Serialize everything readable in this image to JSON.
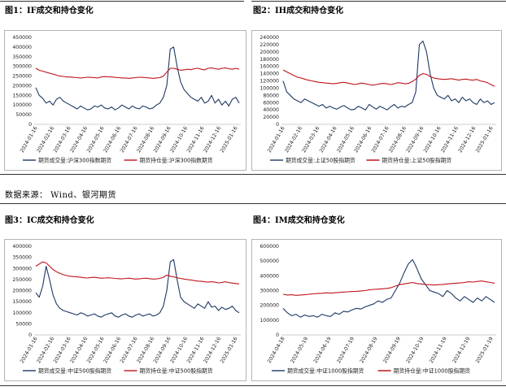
{
  "source_note": "数据来源：  Wind、银河期货",
  "colors": {
    "volume": "#1f3864",
    "oi": "#c0141b",
    "rule": "#333333",
    "frame": "#b5b5b5"
  },
  "chart_data": [
    {
      "id": "if",
      "type": "line",
      "title": "图1：IF成交和持仓变化",
      "yticks": [
        "450000",
        "400000",
        "350000",
        "300000",
        "250000",
        "200000",
        "150000",
        "100000",
        "50000",
        "0"
      ],
      "ylim": [
        0,
        450000
      ],
      "xticks": [
        "2024-01-16",
        "2024-02-16",
        "2024-03-16",
        "2024-04-16",
        "2024-05-16",
        "2024-06-16",
        "2024-07-16",
        "2024-08-16",
        "2024-09-16",
        "2024-10-16",
        "2024-11-16",
        "2024-12-16",
        "2025-01-16"
      ],
      "series": [
        {
          "name": "期货成交量:沪深300指数期货",
          "key": "volume",
          "values": [
            190000,
            150000,
            135000,
            110000,
            120000,
            100000,
            130000,
            140000,
            120000,
            110000,
            100000,
            90000,
            80000,
            95000,
            85000,
            75000,
            80000,
            95000,
            90000,
            100000,
            85000,
            80000,
            90000,
            75000,
            85000,
            100000,
            90000,
            80000,
            95000,
            85000,
            80000,
            95000,
            90000,
            80000,
            85000,
            100000,
            110000,
            140000,
            200000,
            390000,
            400000,
            300000,
            220000,
            180000,
            160000,
            140000,
            130000,
            120000,
            140000,
            110000,
            120000,
            150000,
            110000,
            130000,
            100000,
            120000,
            95000,
            130000,
            140000,
            110000
          ]
        },
        {
          "name": "期货持仓量:沪深300指数期货",
          "key": "oi",
          "values": [
            290000,
            280000,
            275000,
            270000,
            265000,
            260000,
            255000,
            250000,
            248000,
            245000,
            245000,
            243000,
            242000,
            240000,
            242000,
            244000,
            243000,
            242000,
            240000,
            245000,
            247000,
            246000,
            245000,
            243000,
            242000,
            240000,
            240000,
            238000,
            240000,
            242000,
            244000,
            243000,
            242000,
            240000,
            238000,
            240000,
            242000,
            250000,
            270000,
            290000,
            290000,
            285000,
            280000,
            282000,
            285000,
            283000,
            288000,
            290000,
            285000,
            282000,
            290000,
            292000,
            288000,
            285000,
            290000,
            292000,
            288000,
            285000,
            290000,
            285000
          ]
        }
      ]
    },
    {
      "id": "ih",
      "type": "line",
      "title": "图2：IH成交和持仓变化",
      "yticks": [
        "240000",
        "220000",
        "200000",
        "180000",
        "160000",
        "140000",
        "120000",
        "100000",
        "80000",
        "60000",
        "40000",
        "20000",
        "0"
      ],
      "ylim": [
        0,
        240000
      ],
      "xticks": [
        "2024-01-16",
        "2024-02-16",
        "2024-03-16",
        "2024-04-16",
        "2024-05-16",
        "2024-06-16",
        "2024-07-16",
        "2024-08-16",
        "2024-09-16",
        "2024-10-16",
        "2024-11-16",
        "2024-12-16",
        "2025-01-16"
      ],
      "series": [
        {
          "name": "期货成交量:上证50股指期货",
          "key": "volume",
          "values": [
            120000,
            90000,
            80000,
            70000,
            65000,
            60000,
            70000,
            65000,
            60000,
            55000,
            50000,
            55000,
            45000,
            50000,
            45000,
            42000,
            48000,
            52000,
            45000,
            40000,
            42000,
            50000,
            45000,
            40000,
            55000,
            48000,
            42000,
            50000,
            45000,
            40000,
            48000,
            55000,
            45000,
            50000,
            48000,
            55000,
            60000,
            90000,
            220000,
            230000,
            200000,
            140000,
            100000,
            80000,
            75000,
            70000,
            80000,
            65000,
            70000,
            60000,
            75000,
            65000,
            70000,
            60000,
            55000,
            70000,
            60000,
            65000,
            55000,
            60000
          ]
        },
        {
          "name": "期货持仓量:上证50股指期货",
          "key": "oi",
          "values": [
            150000,
            145000,
            140000,
            135000,
            130000,
            128000,
            125000,
            122000,
            120000,
            118000,
            116000,
            115000,
            114000,
            113000,
            112000,
            113000,
            115000,
            116000,
            114000,
            112000,
            110000,
            112000,
            114000,
            112000,
            110000,
            108000,
            110000,
            112000,
            113000,
            112000,
            110000,
            112000,
            115000,
            114000,
            112000,
            113000,
            118000,
            125000,
            135000,
            140000,
            138000,
            132000,
            128000,
            126000,
            125000,
            124000,
            125000,
            126000,
            124000,
            122000,
            124000,
            125000,
            123000,
            122000,
            124000,
            120000,
            118000,
            115000,
            110000,
            105000
          ]
        }
      ]
    },
    {
      "id": "ic",
      "type": "line",
      "title": "图3：IC成交和持仓变化",
      "yticks": [
        "400000",
        "350000",
        "300000",
        "250000",
        "200000",
        "150000",
        "100000",
        "50000",
        "0"
      ],
      "ylim": [
        0,
        400000
      ],
      "xticks": [
        "2024-01-16",
        "2024-02-16",
        "2024-03-16",
        "2024-04-16",
        "2024-05-16",
        "2024-06-16",
        "2024-07-16",
        "2024-08-16",
        "2024-09-16",
        "2024-10-16",
        "2024-11-16",
        "2024-12-16",
        "2025-01-16"
      ],
      "series": [
        {
          "name": "期货成交量:中证500股指期货",
          "key": "volume",
          "values": [
            190000,
            170000,
            220000,
            310000,
            250000,
            180000,
            140000,
            120000,
            110000,
            105000,
            100000,
            95000,
            90000,
            100000,
            95000,
            85000,
            90000,
            95000,
            85000,
            80000,
            90000,
            95000,
            100000,
            85000,
            80000,
            90000,
            95000,
            85000,
            80000,
            90000,
            95000,
            85000,
            90000,
            95000,
            85000,
            90000,
            100000,
            130000,
            200000,
            330000,
            340000,
            250000,
            170000,
            150000,
            140000,
            130000,
            120000,
            140000,
            130000,
            120000,
            150000,
            125000,
            130000,
            110000,
            125000,
            115000,
            120000,
            130000,
            110000,
            100000
          ]
        },
        {
          "name": "期货持仓量:中证500股指期货",
          "key": "oi",
          "values": [
            310000,
            320000,
            330000,
            325000,
            310000,
            295000,
            285000,
            278000,
            272000,
            268000,
            265000,
            263000,
            262000,
            260000,
            258000,
            257000,
            259000,
            260000,
            258000,
            256000,
            257000,
            258000,
            257000,
            255000,
            254000,
            253000,
            255000,
            256000,
            254000,
            252000,
            253000,
            255000,
            256000,
            254000,
            252000,
            253000,
            255000,
            260000,
            270000,
            265000,
            262000,
            258000,
            255000,
            252000,
            250000,
            248000,
            245000,
            243000,
            242000,
            240000,
            238000,
            240000,
            238000,
            235000,
            237000,
            240000,
            236000,
            234000,
            232000,
            230000
          ]
        }
      ]
    },
    {
      "id": "im",
      "type": "line",
      "title": "图4：IM成交和持仓变化",
      "yticks": [
        "600000",
        "500000",
        "400000",
        "300000",
        "200000",
        "100000",
        "0"
      ],
      "ylim": [
        0,
        600000
      ],
      "xticks": [
        "2024-04-18",
        "2024-05-19",
        "2024-06-19",
        "2024-07-19",
        "2024-08-19",
        "2024-09-19",
        "2024-10-19",
        "2024-11-19",
        "2024-12-19",
        "2025-01-19"
      ],
      "series": [
        {
          "name": "期货成交量:中证1000股指期货",
          "key": "volume",
          "values": [
            180000,
            150000,
            130000,
            140000,
            120000,
            135000,
            125000,
            130000,
            120000,
            140000,
            130000,
            125000,
            150000,
            140000,
            160000,
            155000,
            170000,
            180000,
            175000,
            190000,
            200000,
            210000,
            230000,
            220000,
            240000,
            250000,
            300000,
            350000,
            420000,
            480000,
            510000,
            450000,
            380000,
            340000,
            300000,
            290000,
            280000,
            260000,
            300000,
            280000,
            250000,
            230000,
            260000,
            240000,
            220000,
            250000,
            230000,
            260000,
            240000,
            220000
          ]
        },
        {
          "name": "期货持仓量:中证1000股指期货",
          "key": "oi",
          "values": [
            275000,
            270000,
            272000,
            268000,
            270000,
            272000,
            275000,
            278000,
            280000,
            282000,
            285000,
            283000,
            285000,
            288000,
            290000,
            292000,
            294000,
            295000,
            298000,
            300000,
            305000,
            308000,
            310000,
            312000,
            315000,
            320000,
            330000,
            340000,
            345000,
            350000,
            355000,
            348000,
            345000,
            342000,
            340000,
            338000,
            340000,
            342000,
            345000,
            348000,
            350000,
            352000,
            355000,
            360000,
            358000,
            362000,
            365000,
            360000,
            355000,
            350000
          ]
        }
      ]
    }
  ]
}
